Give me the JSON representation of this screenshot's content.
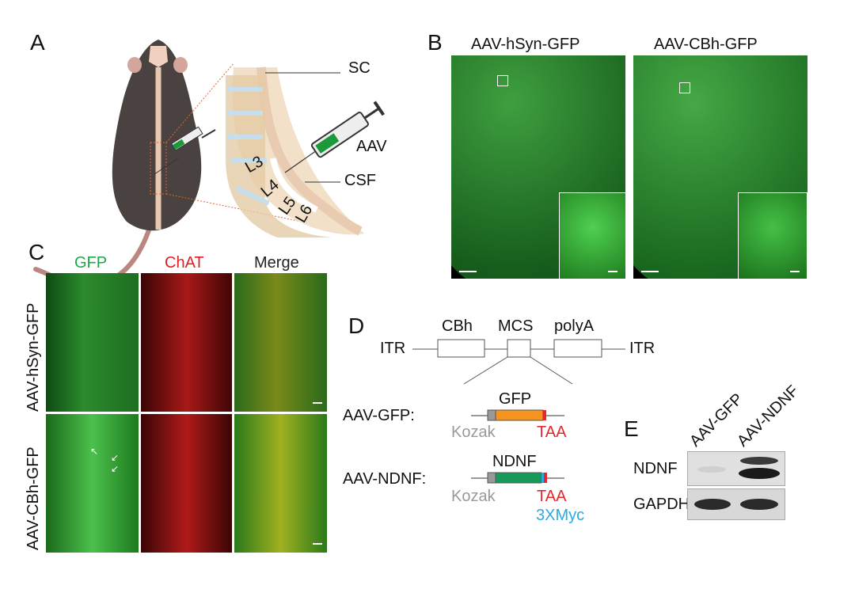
{
  "panels": {
    "a": "A",
    "b": "B",
    "c": "C",
    "d": "D",
    "e": "E"
  },
  "panel_a": {
    "sc": "SC",
    "aav": "AAV",
    "csf": "CSF",
    "vertebrae": [
      "L3",
      "L4",
      "L5",
      "L6"
    ]
  },
  "panel_b": {
    "columns": [
      "AAV-hSyn-GFP",
      "AAV-CBh-GFP"
    ]
  },
  "panel_c": {
    "columns": [
      "GFP",
      "ChAT",
      "Merge"
    ],
    "rows": [
      "AAV-hSyn-GFP",
      "AAV-CBh-GFP"
    ],
    "column_colors": [
      "#1aa84a",
      "#e02020",
      "#222222"
    ]
  },
  "panel_d": {
    "elements": [
      "ITR",
      "CBh",
      "MCS",
      "polyA",
      "ITR"
    ],
    "constructs": [
      {
        "name": "AAV-GFP:",
        "gene": "GFP",
        "gene_color": "#f7941d",
        "kozak": "Kozak",
        "stop": "TAA"
      },
      {
        "name": "AAV-NDNF:",
        "gene": "NDNF",
        "gene_color": "#1a9a5a",
        "kozak": "Kozak",
        "stop": "TAA",
        "tag": "3XMyc"
      }
    ],
    "colors": {
      "kozak": "#999999",
      "stop": "#e8262d",
      "tag": "#29abe2"
    }
  },
  "panel_e": {
    "lanes": [
      "AAV-GFP",
      "AAV-NDNF"
    ],
    "rows": [
      "NDNF",
      "GAPDH"
    ]
  }
}
